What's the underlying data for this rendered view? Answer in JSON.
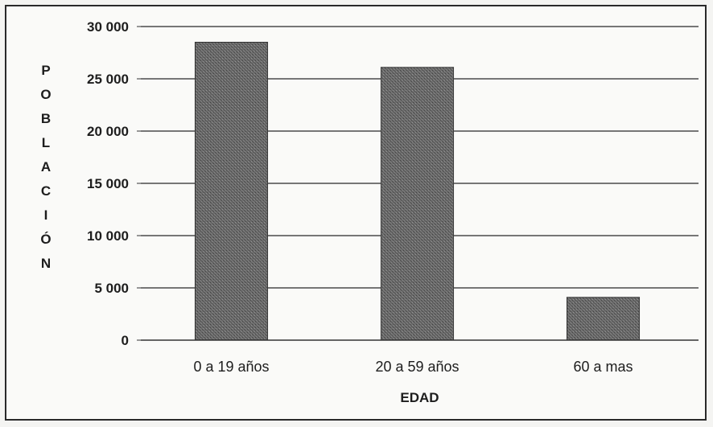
{
  "chart_data": {
    "type": "bar",
    "title": "",
    "xlabel": "EDAD",
    "ylabel": "POBLACIÓN",
    "categories": [
      "0 a 19 años",
      "20 a 59 años",
      "60 a mas"
    ],
    "values": [
      28500,
      26100,
      4100
    ],
    "ylim": [
      0,
      30000
    ],
    "yticks": [
      0,
      5000,
      10000,
      15000,
      20000,
      25000,
      30000
    ],
    "ytick_labels": [
      "0",
      "5 000",
      "10 000",
      "15 000",
      "20 000",
      "25 000",
      "30 000"
    ],
    "grid": true,
    "legend": "none",
    "bar_color": "#5e5e5e"
  }
}
